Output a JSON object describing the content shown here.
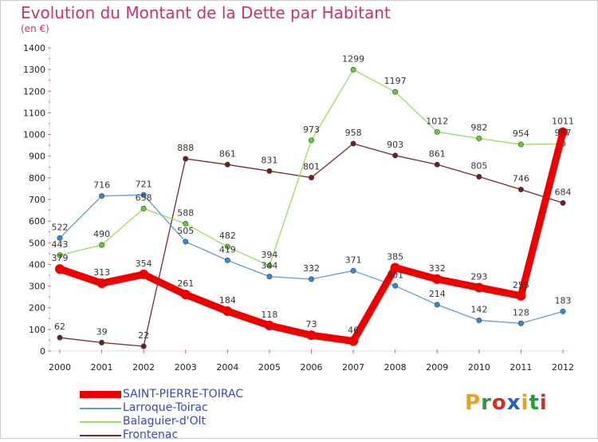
{
  "header": {
    "title": "Evolution du Montant de la Dette par Habitant",
    "subtitle": "(en €)"
  },
  "logo": {
    "text": "Proxiti",
    "colors": [
      "#e8a020",
      "#2a9a3a",
      "#d03020",
      "#2a60c0",
      "#e8a020",
      "#2a9a3a",
      "#d03020"
    ]
  },
  "chart_data": {
    "type": "line",
    "title": "Evolution du Montant de la Dette par Habitant",
    "subtitle": "(en €)",
    "xlabel": "",
    "ylabel": "",
    "categories": [
      "2000",
      "2001",
      "2002",
      "2003",
      "2004",
      "2005",
      "2006",
      "2007",
      "2008",
      "2009",
      "2010",
      "2011",
      "2012"
    ],
    "ylim": [
      0,
      1400
    ],
    "yticks": [
      0,
      100,
      200,
      300,
      400,
      500,
      600,
      700,
      800,
      900,
      1000,
      1100,
      1200,
      1300,
      1400
    ],
    "grid": false,
    "legend_position": "bottom-left",
    "series": [
      {
        "name": "Frontenac",
        "color": "#7a2a2a",
        "dot_color": "#6a1f1f",
        "values": [
          62,
          39,
          22,
          888,
          861,
          831,
          801,
          958,
          903,
          861,
          805,
          746,
          684
        ]
      },
      {
        "name": "Balaguier-d'Olt",
        "color": "#99dd66",
        "dot_color": "#66cc33",
        "values": [
          443,
          490,
          658,
          588,
          482,
          394,
          973,
          1299,
          1197,
          1012,
          982,
          954,
          957
        ]
      },
      {
        "name": "Larroque-Toirac",
        "color": "#6699cc",
        "dot_color": "#3388dd",
        "values": [
          522,
          716,
          721,
          505,
          419,
          344,
          332,
          371,
          301,
          214,
          142,
          128,
          183
        ]
      },
      {
        "name": "SAINT-PIERRE-TOIRAC",
        "color": "#ee0000",
        "dot_color": "#ee0000",
        "values": [
          379,
          313,
          354,
          261,
          184,
          118,
          73,
          46,
          385,
          332,
          293,
          255,
          1011
        ]
      }
    ]
  }
}
